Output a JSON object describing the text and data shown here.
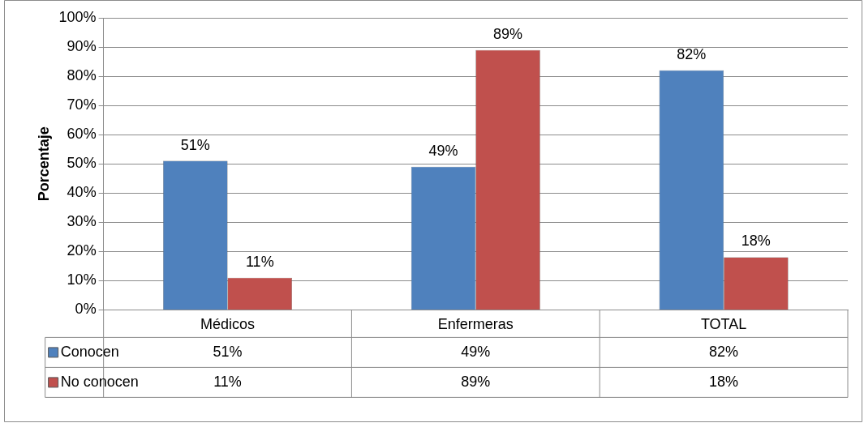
{
  "chart_data": {
    "type": "bar",
    "ylabel": "Porcentaje",
    "categories": [
      "Médicos",
      "Enfermeras",
      "TOTAL"
    ],
    "series": [
      {
        "name": "Conocen",
        "color": "#4f81bd",
        "values": [
          51,
          49,
          82
        ],
        "value_labels": [
          "51%",
          "49%",
          "82%"
        ]
      },
      {
        "name": "No conocen",
        "color": "#c0504d",
        "values": [
          11,
          89,
          18
        ],
        "value_labels": [
          "11%",
          "89%",
          "18%"
        ]
      }
    ],
    "ylim": [
      0,
      100
    ],
    "yticks": [
      {
        "value": 0,
        "label": "0%"
      },
      {
        "value": 10,
        "label": "10%"
      },
      {
        "value": 20,
        "label": "20%"
      },
      {
        "value": 30,
        "label": "30%"
      },
      {
        "value": 40,
        "label": "40%"
      },
      {
        "value": 50,
        "label": "50%"
      },
      {
        "value": 60,
        "label": "60%"
      },
      {
        "value": 70,
        "label": "70%"
      },
      {
        "value": 80,
        "label": "80%"
      },
      {
        "value": 90,
        "label": "90%"
      },
      {
        "value": 100,
        "label": "100%"
      }
    ],
    "grid": "y",
    "legend": "bottom"
  }
}
